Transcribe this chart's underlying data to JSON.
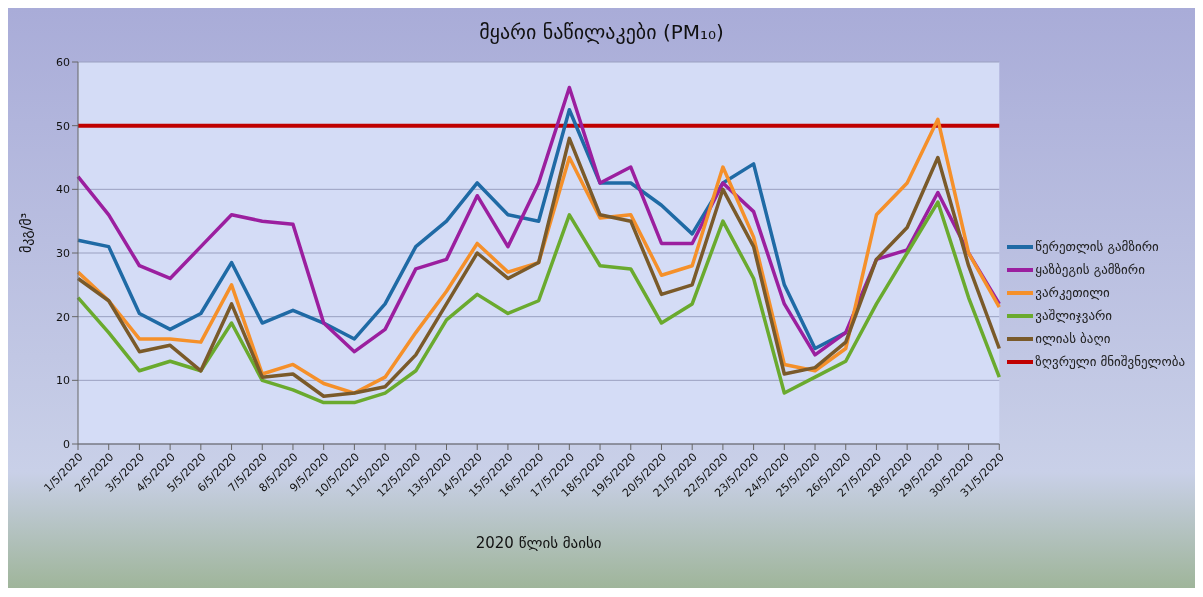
{
  "chart_data": {
    "type": "line",
    "title": "მყარი ნაწილაკები (PM₁₀)",
    "xlabel": "2020 წლის მაისი",
    "ylabel": "მკგ/მ³",
    "categories": [
      "1/5/2020",
      "2/5/2020",
      "3/5/2020",
      "4/5/2020",
      "5/5/2020",
      "6/5/2020",
      "7/5/2020",
      "8/5/2020",
      "9/5/2020",
      "10/5/2020",
      "11/5/2020",
      "12/5/2020",
      "13/5/2020",
      "14/5/2020",
      "15/5/2020",
      "16/5/2020",
      "17/5/2020",
      "18/5/2020",
      "19/5/2020",
      "20/5/2020",
      "21/5/2020",
      "22/5/2020",
      "23/5/2020",
      "24/5/2020",
      "25/5/2020",
      "26/5/2020",
      "27/5/2020",
      "28/5/2020",
      "29/5/2020",
      "30/5/2020",
      "31/5/2020"
    ],
    "series": [
      {
        "name": "წერეთლის გამზირი",
        "color": "#1f6aa5",
        "values": [
          32,
          31,
          20.5,
          18,
          20.5,
          28.5,
          19,
          21,
          19,
          16.5,
          22,
          31,
          35,
          41,
          36,
          35,
          52.5,
          41,
          41,
          37.5,
          33,
          41,
          44,
          25,
          15,
          17.5,
          null,
          null,
          null,
          null,
          null
        ]
      },
      {
        "name": "ყაზბეგის გამზირი",
        "color": "#9b1f9f",
        "values": [
          42,
          36,
          28,
          26,
          31,
          36,
          35,
          34.5,
          19,
          14.5,
          18,
          27.5,
          29,
          39,
          31,
          41,
          56,
          41,
          43.5,
          31.5,
          31.5,
          41,
          36.5,
          22,
          14,
          17.5,
          29,
          30.5,
          39.5,
          30,
          22
        ]
      },
      {
        "name": "ვარკეთილი",
        "color": "#f5902a",
        "values": [
          27,
          22.5,
          16.5,
          16.5,
          16,
          25,
          11,
          12.5,
          9.5,
          8,
          10.5,
          17.5,
          24,
          31.5,
          27,
          28.5,
          45,
          35.5,
          36,
          26.5,
          28,
          43.5,
          32.5,
          12.5,
          11.5,
          15,
          36,
          41,
          51,
          30,
          21.5
        ]
      },
      {
        "name": "ვაშლიჯვარი",
        "color": "#6aaa2e",
        "values": [
          23,
          17.5,
          11.5,
          13,
          11.5,
          19,
          10,
          8.5,
          6.5,
          6.5,
          8,
          11.5,
          19.5,
          23.5,
          20.5,
          22.5,
          36,
          28,
          27.5,
          19,
          22,
          35,
          26,
          8,
          10.5,
          13,
          22,
          30,
          38,
          23,
          10.5
        ]
      },
      {
        "name": "ილიას ბაღი",
        "color": "#7a5a2a",
        "values": [
          26,
          22.5,
          14.5,
          15.5,
          11.5,
          22,
          10.5,
          11,
          7.5,
          8,
          9,
          14,
          22,
          30,
          26,
          28.5,
          48,
          36,
          35,
          23.5,
          25,
          40,
          31,
          11,
          12,
          16,
          29,
          34,
          45,
          28,
          15
        ]
      }
    ],
    "ref_lines": [
      {
        "axis": "y",
        "value": 50,
        "label": "ზღვრული მნიშვნელობა",
        "color": "#c00000"
      }
    ],
    "ylim": [
      0,
      60
    ],
    "yticks": [
      0,
      10,
      20,
      30,
      40,
      50,
      60
    ],
    "grid": "y",
    "legend": "right",
    "marker": "none",
    "line_style": "solid"
  }
}
